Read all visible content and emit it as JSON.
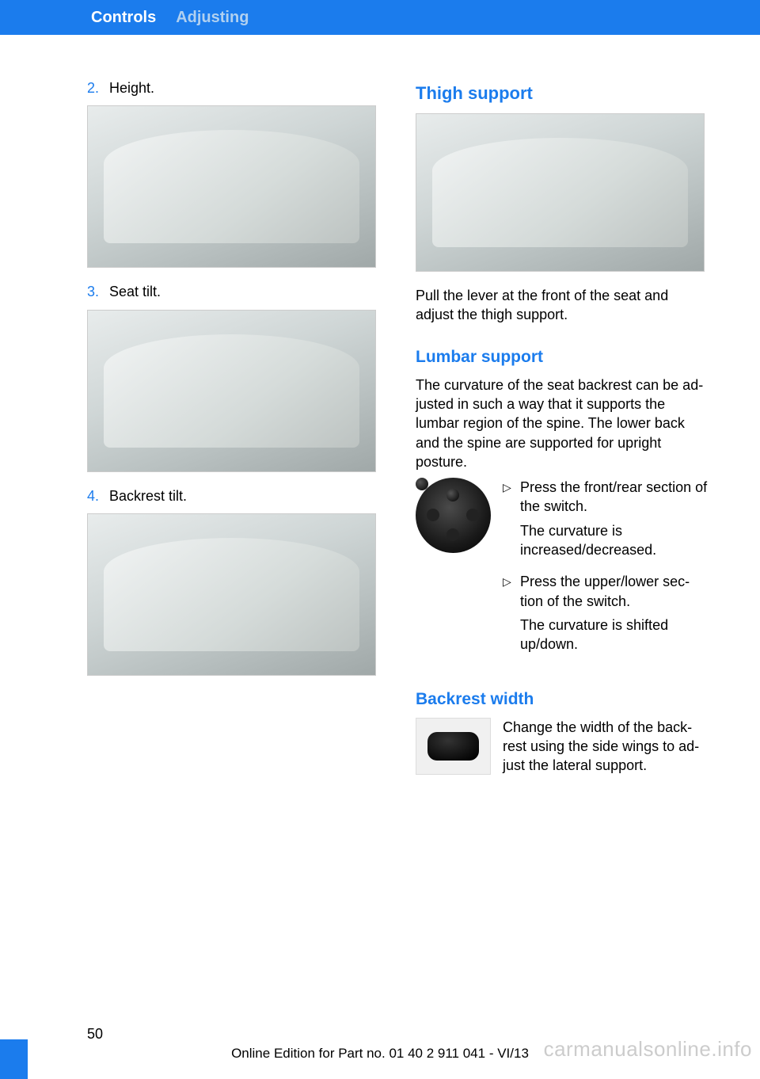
{
  "header": {
    "chapter": "Controls",
    "section": "Adjusting"
  },
  "left_col": {
    "items": [
      {
        "num": "2.",
        "text": "Height."
      },
      {
        "num": "3.",
        "text": "Seat tilt."
      },
      {
        "num": "4.",
        "text": "Backrest tilt."
      }
    ]
  },
  "right_col": {
    "thigh": {
      "heading": "Thigh support",
      "para": "Pull the lever at the front of the seat and adjust the thigh support."
    },
    "lumbar": {
      "heading": "Lumbar support",
      "intro": "The curvature of the seat backrest can be ad‐justed in such a way that it supports the lumbar region of the spine. The lower back and the spine are supported for upright posture.",
      "bullets": [
        {
          "line1": "Press the front/rear section of the switch.",
          "line2": "The curvature is increased/decreased."
        },
        {
          "line1": "Press the upper/lower sec‐tion of the switch.",
          "line2": "The curvature is shifted up/down."
        }
      ]
    },
    "backrest": {
      "heading": "Backrest width",
      "para": "Change the width of the back‐rest using the side wings to ad‐just the lateral support."
    }
  },
  "footer": {
    "page_num": "50",
    "edition": "Online Edition for Part no. 01 40 2 911 041 - VI/13",
    "watermark": "carmanualsonline.info"
  },
  "marker": "▷"
}
